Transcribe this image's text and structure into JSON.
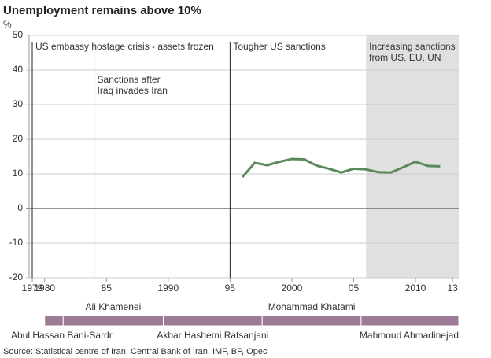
{
  "chart_data": {
    "type": "line",
    "title": "Unemployment remains above 10%",
    "y_unit": "%",
    "x": [
      1996,
      1997,
      1998,
      1999,
      2000,
      2001,
      2002,
      2003,
      2004,
      2005,
      2006,
      2007,
      2008,
      2009,
      2010,
      2011,
      2012
    ],
    "series": [
      {
        "name": "Unemployment",
        "color": "#5b8a5a",
        "values": [
          9.1,
          13.2,
          12.5,
          13.5,
          14.3,
          14.2,
          12.4,
          11.5,
          10.4,
          11.5,
          11.3,
          10.5,
          10.4,
          11.9,
          13.5,
          12.3,
          12.2
        ]
      }
    ],
    "xlim": [
      1979,
      2013.5
    ],
    "xticks": [
      1979,
      1980,
      {
        "value": 1985,
        "label": "85"
      },
      1990,
      {
        "value": 1995,
        "label": "95"
      },
      2000,
      {
        "value": 2005,
        "label": "05"
      },
      2010,
      {
        "value": 2013,
        "label": "13"
      }
    ],
    "ylim": [
      -20,
      50
    ],
    "yticks": [
      -20,
      -10,
      0,
      10,
      20,
      30,
      40,
      50
    ],
    "grid": true,
    "events": [
      {
        "x": 1979,
        "lines": [
          "US embassy hostage crisis - assets frozen"
        ]
      },
      {
        "x": 1984,
        "lines": [
          "Sanctions after",
          "Iraq invades Iran"
        ]
      },
      {
        "x": 1995,
        "lines": [
          "Tougher US sanctions"
        ]
      }
    ],
    "shaded": {
      "start": 2006,
      "end": 2013.5,
      "color": "#e0e0e0",
      "lines": [
        "Increasing sanctions",
        "from US, EU, UN"
      ]
    },
    "presidents": {
      "color": "#9b7b96",
      "terms": [
        {
          "name": "Abul Hassan Bani-Sardr",
          "start": 1980,
          "end": 1981.5,
          "label_position": "below"
        },
        {
          "name": "Ali Khamenei",
          "start": 1981.5,
          "end": 1989.6,
          "label_position": "above"
        },
        {
          "name": "Akbar Hashemi Rafsanjani",
          "start": 1989.6,
          "end": 1997.6,
          "label_position": "below"
        },
        {
          "name": "Mohammad Khatami",
          "start": 1997.6,
          "end": 2005.6,
          "label_position": "above"
        },
        {
          "name": "Mahmoud Ahmadinejad",
          "start": 2005.6,
          "end": 2013.5,
          "label_position": "below"
        }
      ]
    },
    "source": "Source: Statistical centre of Iran, Central Bank of Iran, IMF, BP, Opec"
  }
}
